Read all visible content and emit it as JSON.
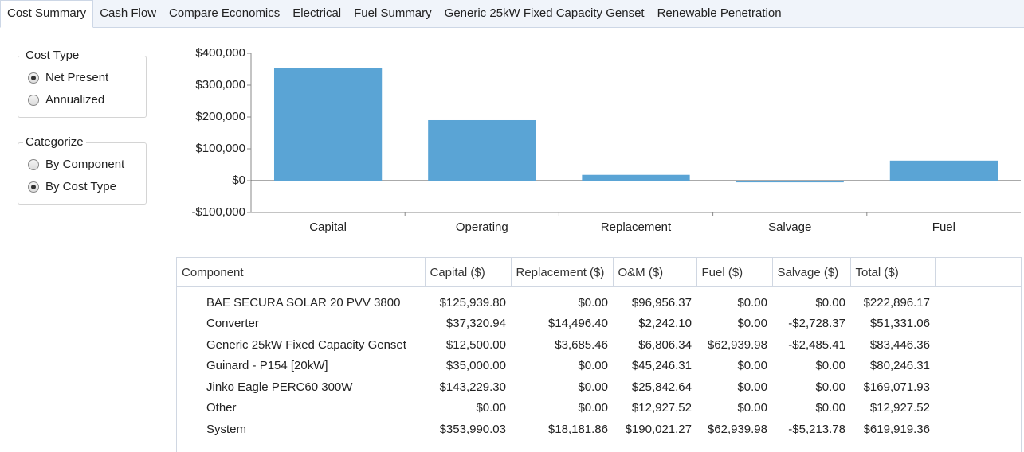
{
  "tabs": [
    {
      "label": "Cost Summary",
      "active": true
    },
    {
      "label": "Cash Flow",
      "active": false
    },
    {
      "label": "Compare Economics",
      "active": false
    },
    {
      "label": "Electrical",
      "active": false
    },
    {
      "label": "Fuel Summary",
      "active": false
    },
    {
      "label": "Generic 25kW Fixed Capacity Genset",
      "active": false
    },
    {
      "label": "Renewable Penetration",
      "active": false
    }
  ],
  "groups": [
    {
      "title": "Cost Type",
      "options": [
        {
          "label": "Net Present",
          "selected": true
        },
        {
          "label": "Annualized",
          "selected": false
        }
      ]
    },
    {
      "title": "Categorize",
      "options": [
        {
          "label": "By Component",
          "selected": false
        },
        {
          "label": "By Cost Type",
          "selected": true
        }
      ]
    }
  ],
  "chart_data": {
    "type": "bar",
    "categories": [
      "Capital",
      "Operating",
      "Replacement",
      "Salvage",
      "Fuel"
    ],
    "values": [
      353990.03,
      190021.27,
      18181.86,
      -5213.78,
      62939.98
    ],
    "color": "#5aa4d5",
    "ylim": [
      -100000,
      400000
    ],
    "yticks": [
      {
        "value": -100000,
        "label": "-$100,000"
      },
      {
        "value": 0,
        "label": "$0"
      },
      {
        "value": 100000,
        "label": "$100,000"
      },
      {
        "value": 200000,
        "label": "$200,000"
      },
      {
        "value": 300000,
        "label": "$300,000"
      },
      {
        "value": 400000,
        "label": "$400,000"
      }
    ]
  },
  "table": {
    "header": [
      "Component",
      "Capital ($)",
      "Replacement ($)",
      "O&M ($)",
      "Fuel ($)",
      "Salvage ($)",
      "Total ($)"
    ],
    "rows": [
      [
        "BAE SECURA SOLAR 20 PVV 3800",
        "$125,939.80",
        "$0.00",
        "$96,956.37",
        "$0.00",
        "$0.00",
        "$222,896.17"
      ],
      [
        "Converter",
        "$37,320.94",
        "$14,496.40",
        "$2,242.10",
        "$0.00",
        "-$2,728.37",
        "$51,331.06"
      ],
      [
        "Generic 25kW Fixed Capacity Genset",
        "$12,500.00",
        "$3,685.46",
        "$6,806.34",
        "$62,939.98",
        "-$2,485.41",
        "$83,446.36"
      ],
      [
        "Guinard - P154 [20kW]",
        "$35,000.00",
        "$0.00",
        "$45,246.31",
        "$0.00",
        "$0.00",
        "$80,246.31"
      ],
      [
        "Jinko Eagle PERC60 300W",
        "$143,229.30",
        "$0.00",
        "$25,842.64",
        "$0.00",
        "$0.00",
        "$169,071.93"
      ],
      [
        "Other",
        "$0.00",
        "$0.00",
        "$12,927.52",
        "$0.00",
        "$0.00",
        "$12,927.52"
      ],
      [
        "System",
        "$353,990.03",
        "$18,181.86",
        "$190,021.27",
        "$62,939.98",
        "-$5,213.78",
        "$619,919.36"
      ]
    ]
  }
}
